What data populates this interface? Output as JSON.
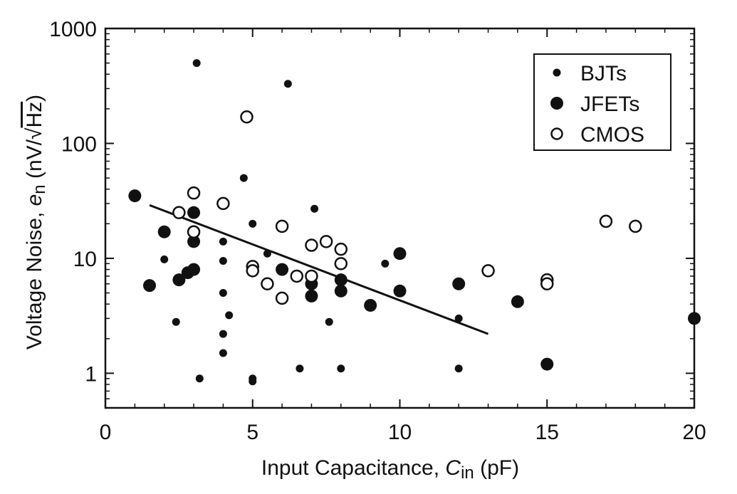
{
  "chart_data": {
    "type": "scatter",
    "title": "",
    "xlabel": {
      "prefix": "Input Capacitance, ",
      "symbol": "C",
      "subscript": "in",
      "unit": " (pF)"
    },
    "ylabel": {
      "prefix": "Voltage Noise, ",
      "symbol": "e",
      "subscript": "n",
      "unit_open": " (nV/",
      "radical": "√",
      "radicand": "Hz",
      "unit_close": ")"
    },
    "xlim": [
      0,
      20
    ],
    "ylim": [
      0.5,
      1000
    ],
    "yscale": "log",
    "grid": false,
    "legend_position": "top-right",
    "x_ticks": [
      0,
      5,
      10,
      15,
      20
    ],
    "x_tick_labels": [
      "0",
      "5",
      "10",
      "15",
      "20"
    ],
    "y_ticks": [
      1,
      10,
      100,
      1000
    ],
    "y_tick_labels": [
      "1",
      "10",
      "100",
      "1000"
    ],
    "series": [
      {
        "name": "BJTs",
        "marker": "small-filled",
        "color": "#111111",
        "points": [
          [
            3.1,
            500
          ],
          [
            6.2,
            330
          ],
          [
            4.7,
            50
          ],
          [
            7.1,
            27
          ],
          [
            5.0,
            20
          ],
          [
            4.0,
            14
          ],
          [
            5.5,
            11
          ],
          [
            2.0,
            9.8
          ],
          [
            4.0,
            9.5
          ],
          [
            9.5,
            9.0
          ],
          [
            4.0,
            5.0
          ],
          [
            4.2,
            3.2
          ],
          [
            2.4,
            2.8
          ],
          [
            7.6,
            2.8
          ],
          [
            12.0,
            3.0
          ],
          [
            4.0,
            2.2
          ],
          [
            4.0,
            1.5
          ],
          [
            3.2,
            0.9
          ],
          [
            5.0,
            0.9
          ],
          [
            5.0,
            0.85
          ],
          [
            6.6,
            1.1
          ],
          [
            8.0,
            1.1
          ],
          [
            12.0,
            1.1
          ]
        ]
      },
      {
        "name": "JFETs",
        "marker": "large-filled",
        "color": "#111111",
        "points": [
          [
            1.0,
            35
          ],
          [
            3.0,
            25
          ],
          [
            2.0,
            17
          ],
          [
            3.0,
            14
          ],
          [
            3.0,
            8.0
          ],
          [
            2.8,
            7.5
          ],
          [
            2.5,
            6.5
          ],
          [
            1.5,
            5.8
          ],
          [
            6.0,
            8.0
          ],
          [
            7.0,
            6.0
          ],
          [
            7.0,
            4.7
          ],
          [
            8.0,
            6.5
          ],
          [
            8.0,
            5.2
          ],
          [
            9.0,
            3.9
          ],
          [
            10.0,
            11.0
          ],
          [
            10.0,
            5.2
          ],
          [
            12.0,
            6.0
          ],
          [
            14.0,
            4.2
          ],
          [
            15.0,
            1.2
          ],
          [
            20.0,
            3.0
          ]
        ]
      },
      {
        "name": "CMOS",
        "marker": "open-circle",
        "color": "#111111",
        "points": [
          [
            4.8,
            170
          ],
          [
            3.0,
            37
          ],
          [
            4.0,
            30
          ],
          [
            2.5,
            25
          ],
          [
            3.0,
            17
          ],
          [
            6.0,
            19
          ],
          [
            7.0,
            13
          ],
          [
            7.5,
            14
          ],
          [
            8.0,
            12
          ],
          [
            8.0,
            9.0
          ],
          [
            5.0,
            8.5
          ],
          [
            5.0,
            7.8
          ],
          [
            6.5,
            7.0
          ],
          [
            7.0,
            7.0
          ],
          [
            5.5,
            6.0
          ],
          [
            6.0,
            4.5
          ],
          [
            13.0,
            7.8
          ],
          [
            15.0,
            6.5
          ],
          [
            15.0,
            6.0
          ],
          [
            17.0,
            21
          ],
          [
            18.0,
            19
          ]
        ]
      }
    ],
    "trend_line": {
      "points": [
        [
          1.5,
          29
        ],
        [
          13.0,
          2.2
        ]
      ]
    }
  }
}
